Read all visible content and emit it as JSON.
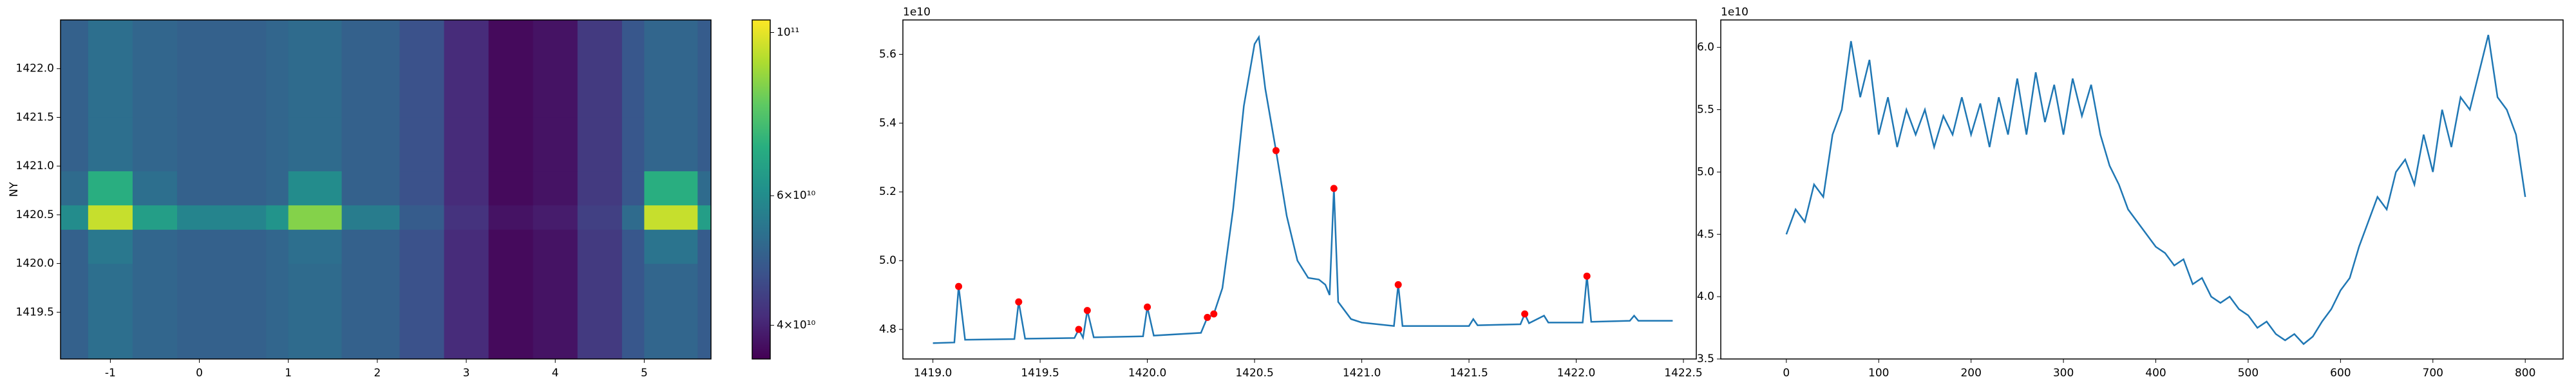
{
  "chart_data": [
    {
      "type": "heatmap",
      "ylabel": "NY",
      "xbins": [
        -1.56,
        -1.25,
        -0.75,
        -0.25,
        0.25,
        0.75,
        1.0,
        1.6,
        2.25,
        2.75,
        3.25,
        3.75,
        4.25,
        4.75,
        5.0,
        5.6,
        5.75
      ],
      "ybins": [
        1419.02,
        1420.0,
        1420.35,
        1420.6,
        1420.95,
        1421.5,
        1422.5
      ],
      "values": [
        [
          50000000000.0,
          53000000000.0,
          51000000000.0,
          50000000000.0,
          50000000000.0,
          51000000000.0,
          52000000000.0,
          50000000000.0,
          47000000000.0,
          41000000000.0,
          37000000000.0,
          38000000000.0,
          43000000000.0,
          48000000000.0,
          51000000000.0,
          49000000000.0
        ],
        [
          50000000000.0,
          55000000000.0,
          51000000000.0,
          50000000000.0,
          50000000000.0,
          51000000000.0,
          53000000000.0,
          50000000000.0,
          47000000000.0,
          41000000000.0,
          37000000000.0,
          38000000000.0,
          43000000000.0,
          48000000000.0,
          54000000000.0,
          49000000000.0
        ],
        [
          60000000000.0,
          95000000000.0,
          65000000000.0,
          58000000000.0,
          58000000000.0,
          62000000000.0,
          85000000000.0,
          56000000000.0,
          49000000000.0,
          42000000000.0,
          38000000000.0,
          39000000000.0,
          44000000000.0,
          52000000000.0,
          95000000000.0,
          65000000000.0
        ],
        [
          52000000000.0,
          70000000000.0,
          53000000000.0,
          50000000000.0,
          50000000000.0,
          51000000000.0,
          60000000000.0,
          50000000000.0,
          47000000000.0,
          41000000000.0,
          37000000000.0,
          38000000000.0,
          43000000000.0,
          48000000000.0,
          70000000000.0,
          52000000000.0
        ],
        [
          50000000000.0,
          53000000000.0,
          51000000000.0,
          50000000000.0,
          50000000000.0,
          51000000000.0,
          52000000000.0,
          50000000000.0,
          47000000000.0,
          41000000000.0,
          37000000000.0,
          38000000000.0,
          43000000000.0,
          48000000000.0,
          51000000000.0,
          49000000000.0
        ],
        [
          50000000000.0,
          53000000000.0,
          51000000000.0,
          50000000000.0,
          50000000000.0,
          51000000000.0,
          52000000000.0,
          50000000000.0,
          47000000000.0,
          41000000000.0,
          37000000000.0,
          38000000000.0,
          43000000000.0,
          48000000000.0,
          51000000000.0,
          49000000000.0
        ]
      ],
      "xlim": [
        -1.56,
        5.75
      ],
      "ylim": [
        1419.02,
        1422.5
      ],
      "xticks": [
        -1,
        0,
        1,
        2,
        3,
        4,
        5
      ],
      "yticks": [
        1419.5,
        {
          "value": 1420,
          "label": "1420.0"
        },
        1420.5,
        {
          "value": 1421,
          "label": "1421.0"
        },
        1421.5,
        {
          "value": 1422,
          "label": "1422.0"
        }
      ],
      "colormap": [
        "#440154",
        "#472d7b",
        "#3b528b",
        "#2c728e",
        "#21918c",
        "#28ae80",
        "#5ec962",
        "#addc30",
        "#fde725"
      ],
      "colorbar": {
        "scale": "log",
        "lim": [
          36000000000.0,
          104000000000.0
        ],
        "ticks": [
          {
            "value": 40000000000.0,
            "label": "4×10¹⁰"
          },
          {
            "value": 60000000000.0,
            "label": "6×10¹⁰"
          },
          {
            "value": 100000000000.0,
            "label": "10¹¹"
          }
        ]
      }
    },
    {
      "type": "line",
      "color": "#1f77b4",
      "offset_text": "1e10",
      "x": [
        1419.0,
        1419.1,
        1419.12,
        1419.15,
        1419.38,
        1419.4,
        1419.43,
        1419.66,
        1419.68,
        1419.7,
        1419.72,
        1419.75,
        1419.98,
        1420.0,
        1420.03,
        1420.25,
        1420.28,
        1420.3,
        1420.31,
        1420.35,
        1420.4,
        1420.45,
        1420.5,
        1420.52,
        1420.55,
        1420.6,
        1420.65,
        1420.7,
        1420.75,
        1420.8,
        1420.83,
        1420.85,
        1420.87,
        1420.89,
        1420.95,
        1421.0,
        1421.15,
        1421.17,
        1421.19,
        1421.5,
        1421.52,
        1421.54,
        1421.74,
        1421.76,
        1421.78,
        1421.85,
        1421.87,
        1422.03,
        1422.05,
        1422.07,
        1422.25,
        1422.27,
        1422.29,
        1422.45
      ],
      "values": [
        4.76,
        4.762,
        4.925,
        4.77,
        4.772,
        4.88,
        4.773,
        4.775,
        4.8,
        4.776,
        4.855,
        4.777,
        4.78,
        4.865,
        4.782,
        4.79,
        4.835,
        4.84,
        4.845,
        4.92,
        5.15,
        5.45,
        5.63,
        5.65,
        5.5,
        5.32,
        5.13,
        5.0,
        4.95,
        4.945,
        4.93,
        4.9,
        5.21,
        4.88,
        4.83,
        4.82,
        4.81,
        4.93,
        4.81,
        4.81,
        4.83,
        4.812,
        4.815,
        4.845,
        4.818,
        4.84,
        4.82,
        4.82,
        4.955,
        4.822,
        4.825,
        4.84,
        4.825,
        4.825
      ],
      "peaks_x": [
        1419.12,
        1419.4,
        1419.68,
        1419.72,
        1420.0,
        1420.28,
        1420.31,
        1420.6,
        1420.87,
        1421.17,
        1421.76,
        1422.05
      ],
      "peaks_values": [
        4.925,
        4.88,
        4.8,
        4.855,
        4.865,
        4.835,
        4.845,
        5.32,
        5.21,
        4.93,
        4.845,
        4.955
      ],
      "peaks_color": "#ff0000",
      "xlim": [
        1418.86,
        1422.56
      ],
      "ylim": [
        4.714,
        5.7
      ],
      "xticks": [
        {
          "value": 1419,
          "label": "1419.0"
        },
        1419.5,
        {
          "value": 1420,
          "label": "1420.0"
        },
        1420.5,
        {
          "value": 1421,
          "label": "1421.0"
        },
        1421.5,
        {
          "value": 1422,
          "label": "1422.0"
        },
        1422.5
      ],
      "yticks": [
        4.8,
        {
          "value": 5,
          "label": "5.0"
        },
        5.2,
        5.4,
        5.6
      ]
    },
    {
      "type": "line",
      "color": "#1f77b4",
      "offset_text": "1e10",
      "x": [
        0,
        10,
        20,
        30,
        40,
        50,
        60,
        70,
        80,
        90,
        100,
        110,
        120,
        130,
        140,
        150,
        160,
        170,
        180,
        190,
        200,
        210,
        220,
        230,
        240,
        250,
        260,
        270,
        280,
        290,
        300,
        310,
        320,
        330,
        340,
        350,
        360,
        370,
        380,
        390,
        400,
        410,
        420,
        430,
        440,
        450,
        460,
        470,
        480,
        490,
        500,
        510,
        520,
        530,
        540,
        550,
        560,
        570,
        580,
        590,
        600,
        610,
        620,
        630,
        640,
        650,
        660,
        670,
        680,
        690,
        700,
        710,
        720,
        730,
        740,
        750,
        760,
        770,
        780,
        790,
        800
      ],
      "values": [
        4.5,
        4.7,
        4.6,
        4.9,
        4.8,
        5.3,
        5.5,
        6.05,
        5.6,
        5.9,
        5.3,
        5.6,
        5.2,
        5.5,
        5.3,
        5.5,
        5.2,
        5.45,
        5.3,
        5.6,
        5.3,
        5.55,
        5.2,
        5.6,
        5.3,
        5.75,
        5.3,
        5.8,
        5.4,
        5.7,
        5.3,
        5.75,
        5.45,
        5.7,
        5.3,
        5.05,
        4.9,
        4.7,
        4.6,
        4.5,
        4.4,
        4.35,
        4.25,
        4.3,
        4.1,
        4.15,
        4.0,
        3.95,
        4.0,
        3.9,
        3.85,
        3.75,
        3.8,
        3.7,
        3.65,
        3.7,
        3.62,
        3.68,
        3.8,
        3.9,
        4.05,
        4.15,
        4.4,
        4.6,
        4.8,
        4.7,
        5.0,
        5.1,
        4.9,
        5.3,
        5.0,
        5.5,
        5.2,
        5.6,
        5.5,
        5.8,
        6.1,
        5.6,
        5.5,
        5.3,
        4.8
      ],
      "xlim": [
        -71,
        841
      ],
      "ylim": [
        3.5,
        6.22
      ],
      "xticks": [
        0,
        100,
        200,
        300,
        400,
        500,
        600,
        700,
        800
      ],
      "yticks": [
        3.5,
        {
          "value": 4,
          "label": "4.0"
        },
        4.5,
        {
          "value": 5,
          "label": "5.0"
        },
        5.5,
        {
          "value": 6,
          "label": "6.0"
        }
      ]
    }
  ]
}
